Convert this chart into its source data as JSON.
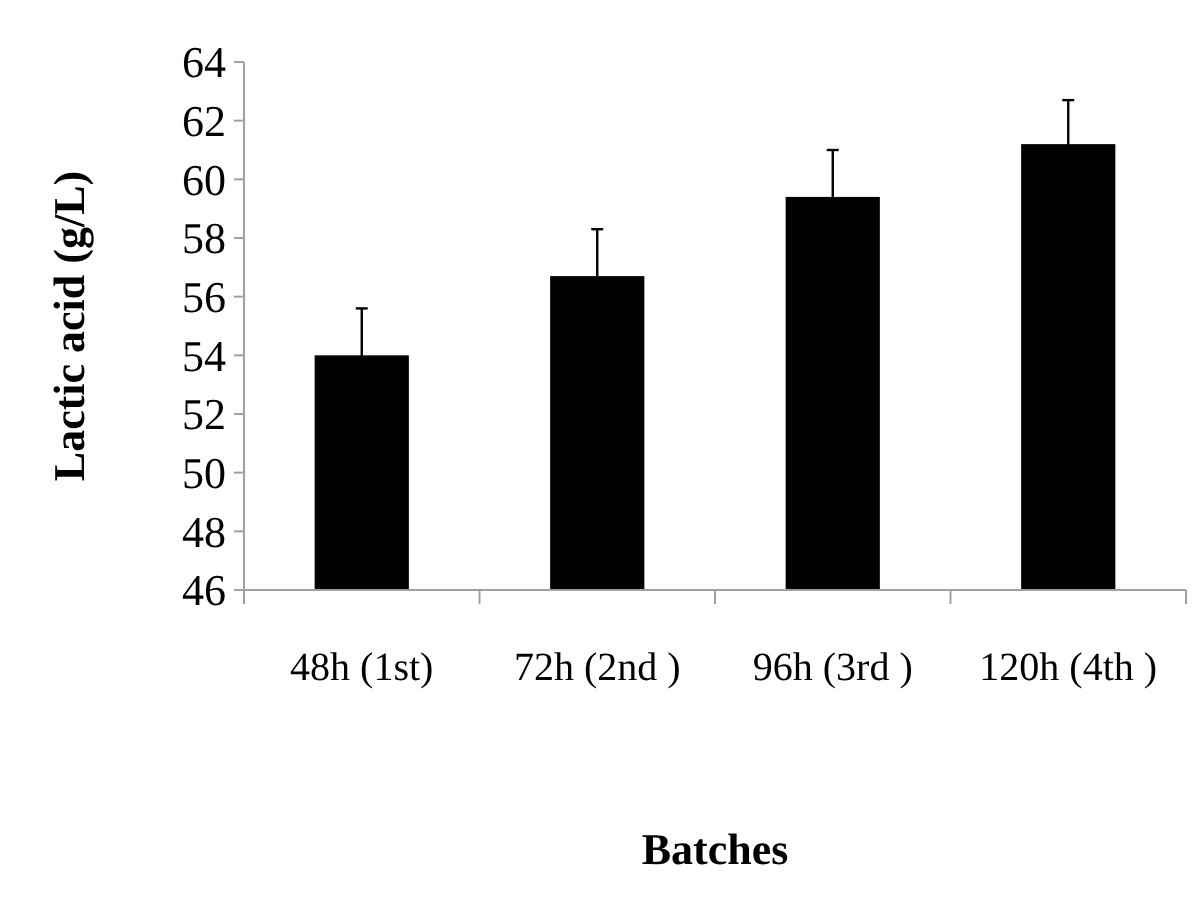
{
  "chart_data": {
    "type": "bar",
    "xlabel": "Batches",
    "ylabel": "Lactic acid (g/L)",
    "categories": [
      "48h (1st)",
      "72h (2nd )",
      "96h (3rd )",
      "120h (4th )"
    ],
    "values": [
      54.0,
      56.7,
      59.4,
      61.2
    ],
    "errors": [
      1.6,
      1.6,
      1.6,
      1.5
    ],
    "color": "#000000",
    "ylim": [
      46,
      64
    ],
    "yticks": [
      46,
      48,
      50,
      52,
      54,
      56,
      58,
      60,
      62,
      64
    ]
  }
}
